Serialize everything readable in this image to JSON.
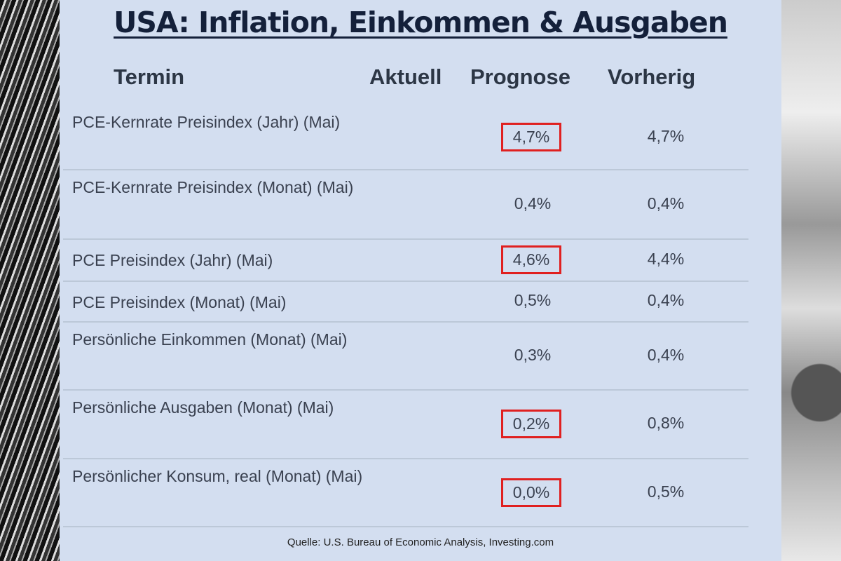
{
  "title": "USA: Inflation, Einkommen & Ausgaben",
  "columns": {
    "termin": "Termin",
    "aktuell": "Aktuell",
    "prognose": "Prognose",
    "vorherig": "Vorherig"
  },
  "highlight_color": "#e02020",
  "rows": [
    {
      "termin": "PCE-Kernrate Preisindex (Jahr) (Mai)",
      "aktuell": "",
      "prognose": "4,7%",
      "vorherig": "4,7%",
      "highlighted": true
    },
    {
      "termin": "PCE-Kernrate Preisindex (Monat) (Mai)",
      "aktuell": "",
      "prognose": "0,4%",
      "vorherig": "0,4%",
      "highlighted": false
    },
    {
      "termin": "PCE Preisindex (Jahr) (Mai)",
      "aktuell": "",
      "prognose": "4,6%",
      "vorherig": "4,4%",
      "highlighted": true
    },
    {
      "termin": "PCE Preisindex (Monat) (Mai)",
      "aktuell": "",
      "prognose": "0,5%",
      "vorherig": "0,4%",
      "highlighted": false
    },
    {
      "termin": "Persönliche Einkommen (Monat) (Mai)",
      "aktuell": "",
      "prognose": "0,3%",
      "vorherig": "0,4%",
      "highlighted": false
    },
    {
      "termin": "Persönliche Ausgaben (Monat) (Mai)",
      "aktuell": "",
      "prognose": "0,2%",
      "vorherig": "0,8%",
      "highlighted": true
    },
    {
      "termin": "Persönlicher Konsum, real (Monat) (Mai)",
      "aktuell": "",
      "prognose": "0,0%",
      "vorherig": "0,5%",
      "highlighted": true
    }
  ],
  "source": "Quelle: U.S. Bureau of Economic Analysis, Investing.com"
}
